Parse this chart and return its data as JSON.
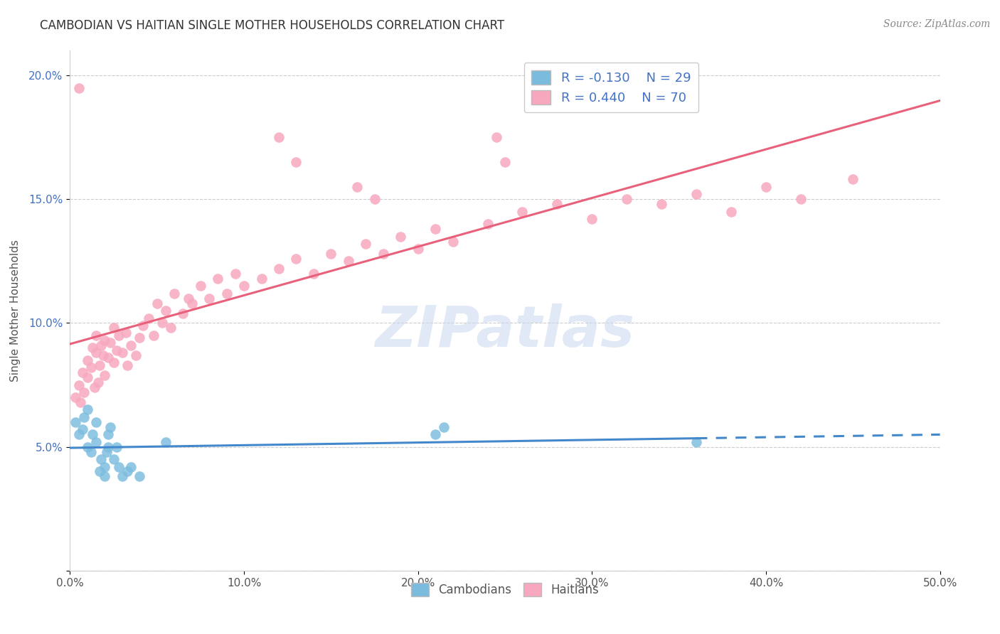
{
  "title": "CAMBODIAN VS HAITIAN SINGLE MOTHER HOUSEHOLDS CORRELATION CHART",
  "source": "Source: ZipAtlas.com",
  "ylabel": "Single Mother Households",
  "legend_cambodians": "Cambodians",
  "legend_haitians": "Haitians",
  "cambodian_R": -0.13,
  "cambodian_N": 29,
  "haitian_R": 0.44,
  "haitian_N": 70,
  "xlim": [
    0.0,
    0.5
  ],
  "ylim": [
    0.0,
    0.21
  ],
  "xticks": [
    0.0,
    0.1,
    0.2,
    0.3,
    0.4,
    0.5
  ],
  "yticks": [
    0.0,
    0.05,
    0.1,
    0.15,
    0.2
  ],
  "cambodian_color": "#7bbcde",
  "haitian_color": "#f7a8bf",
  "cambodian_line_color": "#4488cc",
  "haitian_line_color": "#e8607a",
  "watermark_text": "ZIPatlas",
  "background_color": "#ffffff",
  "cambodian_x": [
    0.003,
    0.005,
    0.007,
    0.008,
    0.01,
    0.01,
    0.012,
    0.013,
    0.015,
    0.015,
    0.017,
    0.018,
    0.02,
    0.02,
    0.021,
    0.022,
    0.022,
    0.023,
    0.025,
    0.027,
    0.028,
    0.03,
    0.033,
    0.035,
    0.04,
    0.055,
    0.21,
    0.215,
    0.36
  ],
  "cambodian_y": [
    0.06,
    0.055,
    0.057,
    0.062,
    0.05,
    0.065,
    0.048,
    0.055,
    0.052,
    0.06,
    0.04,
    0.045,
    0.038,
    0.042,
    0.048,
    0.05,
    0.055,
    0.058,
    0.045,
    0.05,
    0.042,
    0.038,
    0.04,
    0.042,
    0.038,
    0.052,
    0.055,
    0.058,
    0.052
  ],
  "haitian_x": [
    0.003,
    0.005,
    0.006,
    0.007,
    0.008,
    0.01,
    0.01,
    0.012,
    0.013,
    0.014,
    0.015,
    0.015,
    0.016,
    0.017,
    0.018,
    0.019,
    0.02,
    0.02,
    0.022,
    0.023,
    0.025,
    0.025,
    0.027,
    0.028,
    0.03,
    0.032,
    0.033,
    0.035,
    0.038,
    0.04,
    0.042,
    0.045,
    0.048,
    0.05,
    0.053,
    0.055,
    0.058,
    0.06,
    0.065,
    0.068,
    0.07,
    0.075,
    0.08,
    0.085,
    0.09,
    0.095,
    0.1,
    0.11,
    0.12,
    0.13,
    0.14,
    0.15,
    0.16,
    0.17,
    0.18,
    0.19,
    0.2,
    0.21,
    0.22,
    0.24,
    0.26,
    0.28,
    0.3,
    0.32,
    0.34,
    0.36,
    0.38,
    0.4,
    0.42,
    0.45
  ],
  "haitian_y": [
    0.07,
    0.075,
    0.068,
    0.08,
    0.072,
    0.078,
    0.085,
    0.082,
    0.09,
    0.074,
    0.088,
    0.095,
    0.076,
    0.083,
    0.091,
    0.087,
    0.079,
    0.093,
    0.086,
    0.092,
    0.084,
    0.098,
    0.089,
    0.095,
    0.088,
    0.096,
    0.083,
    0.091,
    0.087,
    0.094,
    0.099,
    0.102,
    0.095,
    0.108,
    0.1,
    0.105,
    0.098,
    0.112,
    0.104,
    0.11,
    0.108,
    0.115,
    0.11,
    0.118,
    0.112,
    0.12,
    0.115,
    0.118,
    0.122,
    0.126,
    0.12,
    0.128,
    0.125,
    0.132,
    0.128,
    0.135,
    0.13,
    0.138,
    0.133,
    0.14,
    0.145,
    0.148,
    0.142,
    0.15,
    0.148,
    0.152,
    0.145,
    0.155,
    0.15,
    0.158
  ],
  "haitian_high_x": [
    0.005,
    0.12,
    0.13,
    0.245,
    0.25,
    0.165,
    0.175
  ],
  "haitian_high_y": [
    0.195,
    0.175,
    0.165,
    0.175,
    0.165,
    0.155,
    0.15
  ]
}
